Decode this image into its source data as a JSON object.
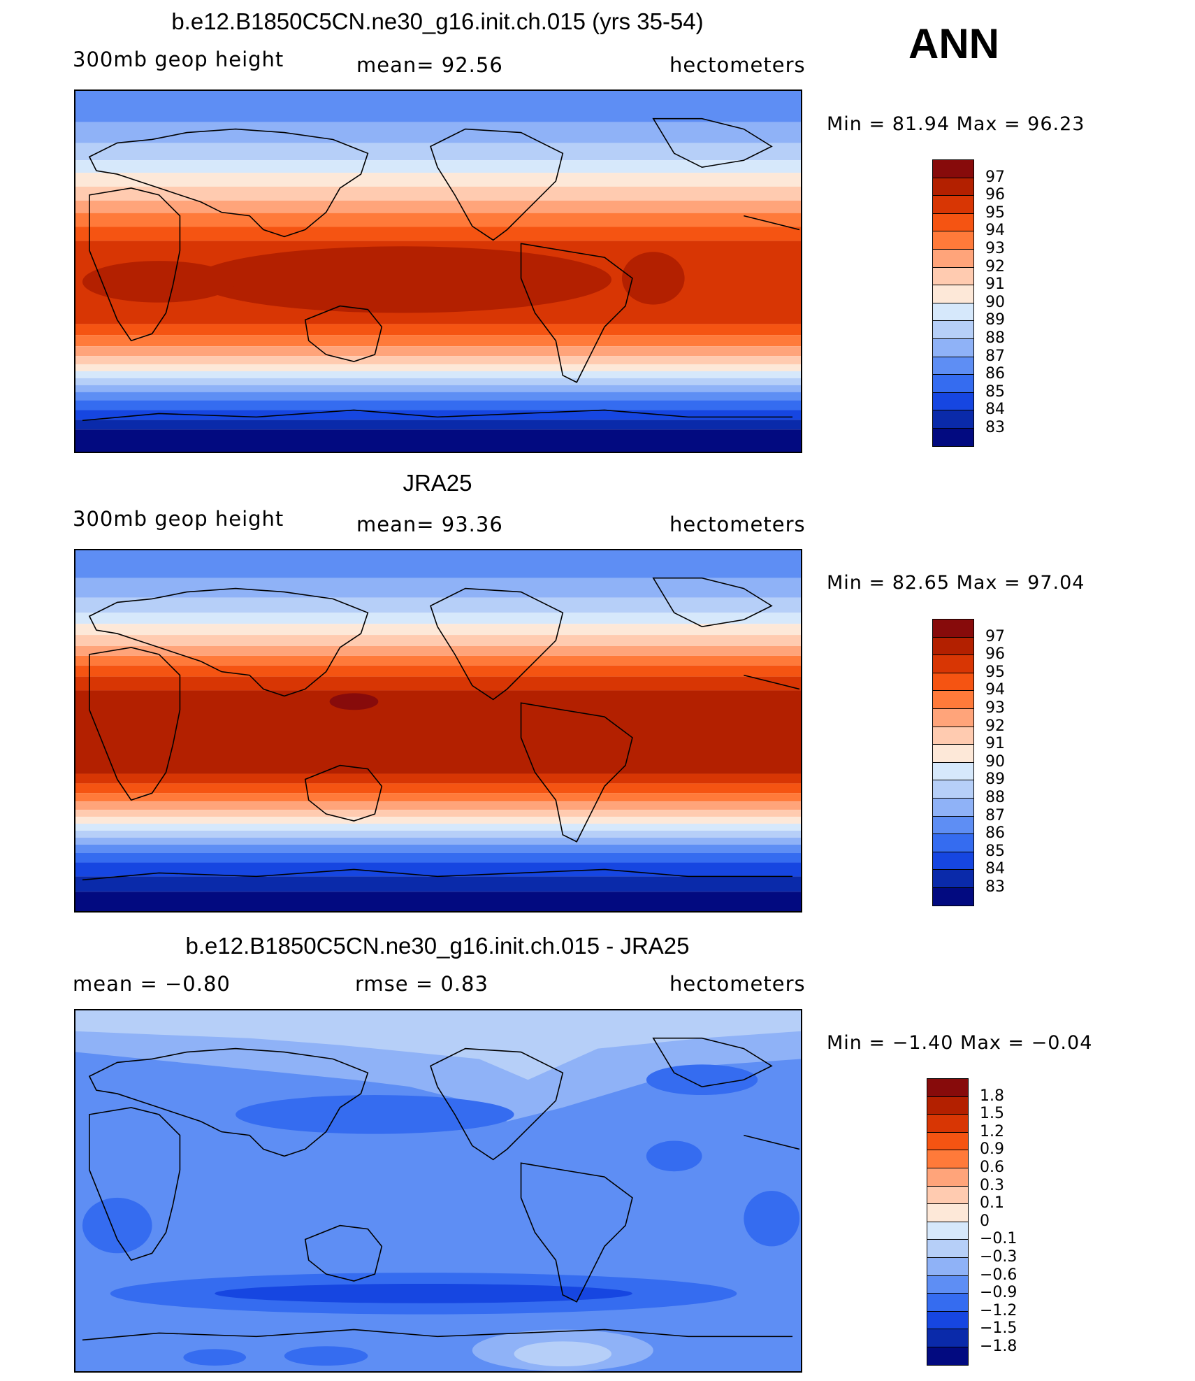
{
  "season": "ANN",
  "panels": [
    {
      "title": "b.e12.B1850C5CN.ne30_g16.init.ch.015 (yrs 35-54)",
      "left_label": "300mb  geop  height",
      "center_label": "mean=   92.56",
      "right_label": "hectometers",
      "minmax": "Min  =    81.94  Max  =    96.23"
    },
    {
      "title": "JRA25",
      "left_label": "300mb  geop  height",
      "center_label": "mean=   93.36",
      "right_label": "hectometers",
      "minmax": "Min  =    82.65  Max  =    97.04"
    },
    {
      "title": "b.e12.B1850C5CN.ne30_g16.init.ch.015 - JRA25",
      "left_label": "mean  =    −0.80",
      "center_label": "rmse  =     0.83",
      "right_label": "hectometers",
      "minmax": "Min  =   −1.40  Max  =   −0.04"
    }
  ],
  "colorbar_abs": {
    "labels": [
      "97",
      "96",
      "95",
      "94",
      "93",
      "92",
      "91",
      "90",
      "89",
      "88",
      "87",
      "86",
      "85",
      "84",
      "83"
    ],
    "colors": [
      "#870b0b",
      "#b32000",
      "#d83604",
      "#f55412",
      "#ff7a3a",
      "#ffa47a",
      "#ffcbb0",
      "#fde8d8",
      "#d6e8fb",
      "#b6cff8",
      "#8fb2f7",
      "#5e8ef4",
      "#356cf0",
      "#1646e1",
      "#0a2aaa",
      "#020a80"
    ]
  },
  "colorbar_diff": {
    "labels": [
      "1.8",
      "1.5",
      "1.2",
      "0.9",
      "0.6",
      "0.3",
      "0.1",
      "0",
      "−0.1",
      "−0.3",
      "−0.6",
      "−0.9",
      "−1.2",
      "−1.5",
      "−1.8"
    ],
    "colors": [
      "#870b0b",
      "#b32000",
      "#d83604",
      "#f55412",
      "#ff7a3a",
      "#ffa47a",
      "#ffcbb0",
      "#fde8d8",
      "#d6e8fb",
      "#b6cff8",
      "#8fb2f7",
      "#5e8ef4",
      "#356cf0",
      "#1646e1",
      "#0a2aaa",
      "#020a80"
    ]
  }
}
